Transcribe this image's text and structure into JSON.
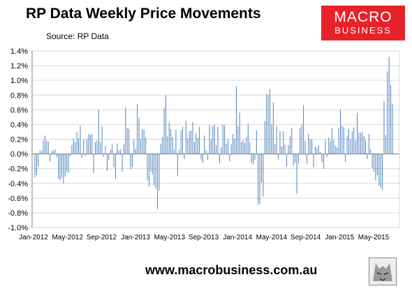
{
  "header": {
    "title": "RP Data Weekly Price Movements",
    "source": "Source: RP Data"
  },
  "logo": {
    "line1": "MACRO",
    "line2": "BUSINESS",
    "color": "#e8222a"
  },
  "footer": {
    "url": "www.macrobusiness.com.au"
  },
  "chart_data": {
    "type": "bar",
    "title": "RP Data Weekly Price Movements",
    "xlabel": "",
    "ylabel": "",
    "ylim": [
      -1.0,
      1.4
    ],
    "yticks": [
      "1.4%",
      "1.2%",
      "1.0%",
      "0.8%",
      "0.6%",
      "0.4%",
      "0.2%",
      "0.0%",
      "-0.2%",
      "-0.4%",
      "-0.6%",
      "-0.8%",
      "-1.0%"
    ],
    "xticks": [
      "Jan-2012",
      "May-2012",
      "Sep-2012",
      "Jan-2013",
      "May-2013",
      "Sep-2013",
      "Jan-2014",
      "May-2014",
      "Sep-2014",
      "Jan-2015",
      "May-2015"
    ],
    "grid": true,
    "bar_color": "#4f81bd",
    "series": [
      {
        "values": [
          -0.32,
          -0.29,
          -0.17,
          0.05,
          0.04,
          0.18,
          0.25,
          0.18,
          0.17,
          -0.1,
          0.04,
          0.04,
          0.06,
          -0.04,
          -0.34,
          -0.36,
          -0.32,
          -0.4,
          -0.31,
          -0.24,
          -0.26,
          -0.03,
          0.12,
          0.21,
          0.16,
          0.3,
          0.21,
          0.38,
          -0.05,
          0.2,
          -0.03,
          0.2,
          0.27,
          0.26,
          0.27,
          -0.26,
          0.16,
          0.18,
          0.6,
          0.16,
          0.38,
          -0.04,
          0.11,
          -0.23,
          -0.08,
          0.06,
          0.13,
          -0.18,
          -0.34,
          0.14,
          0.05,
          0.06,
          -0.24,
          0.13,
          0.63,
          0.35,
          0.34,
          -0.21,
          -0.18,
          0.2,
          0.07,
          0.68,
          0.49,
          0.2,
          0.34,
          0.33,
          0.22,
          -0.36,
          -0.44,
          -0.24,
          -0.28,
          -0.43,
          -0.47,
          -0.75,
          -0.5,
          0.14,
          0.23,
          0.62,
          0.8,
          0.24,
          0.43,
          0.34,
          0.23,
          0.06,
          0.33,
          -0.3,
          0.06,
          0.32,
          0.37,
          -0.07,
          0.45,
          0.22,
          0.31,
          0.32,
          0.43,
          0.16,
          0.28,
          0.22,
          0.37,
          -0.08,
          -0.12,
          0.25,
          0.05,
          -0.08,
          0.39,
          0.2,
          0.38,
          0.4,
          0.12,
          0.37,
          -0.13,
          0.09,
          0.4,
          0.39,
          0.14,
          0.2,
          -0.1,
          0.13,
          0.27,
          0.21,
          0.92,
          0.38,
          0.56,
          0.16,
          0.19,
          0.15,
          0.23,
          0.41,
          0.16,
          -0.12,
          -0.14,
          -0.08,
          0.32,
          -0.69,
          -0.68,
          -0.39,
          -0.58,
          0.45,
          0.82,
          0.8,
          0.88,
          0.4,
          0.7,
          0.13,
          0.38,
          -0.08,
          0.31,
          0.1,
          0.31,
          0.13,
          -0.17,
          0.12,
          0.24,
          0.35,
          -0.16,
          -0.12,
          -0.54,
          -0.13,
          0.35,
          0.4,
          0.66,
          0.18,
          -0.13,
          0.27,
          0.2,
          0.2,
          -0.18,
          0.1,
          0.08,
          0.12,
          0.03,
          -0.11,
          -0.2,
          0.19,
          -0.04,
          0.22,
          0.18,
          0.35,
          0.19,
          0.11,
          0.09,
          0.35,
          0.6,
          0.38,
          0.36,
          -0.11,
          0.24,
          0.34,
          0.2,
          0.31,
          0.36,
          0.19,
          0.56,
          0.29,
          0.29,
          0.3,
          0.24,
          0.19,
          -0.07,
          0.27,
          0.06,
          -0.19,
          -0.24,
          -0.36,
          -0.29,
          -0.43,
          -0.46,
          -0.49,
          0.72,
          0.26,
          1.12,
          1.32,
          0.94,
          0.68
        ]
      }
    ]
  }
}
